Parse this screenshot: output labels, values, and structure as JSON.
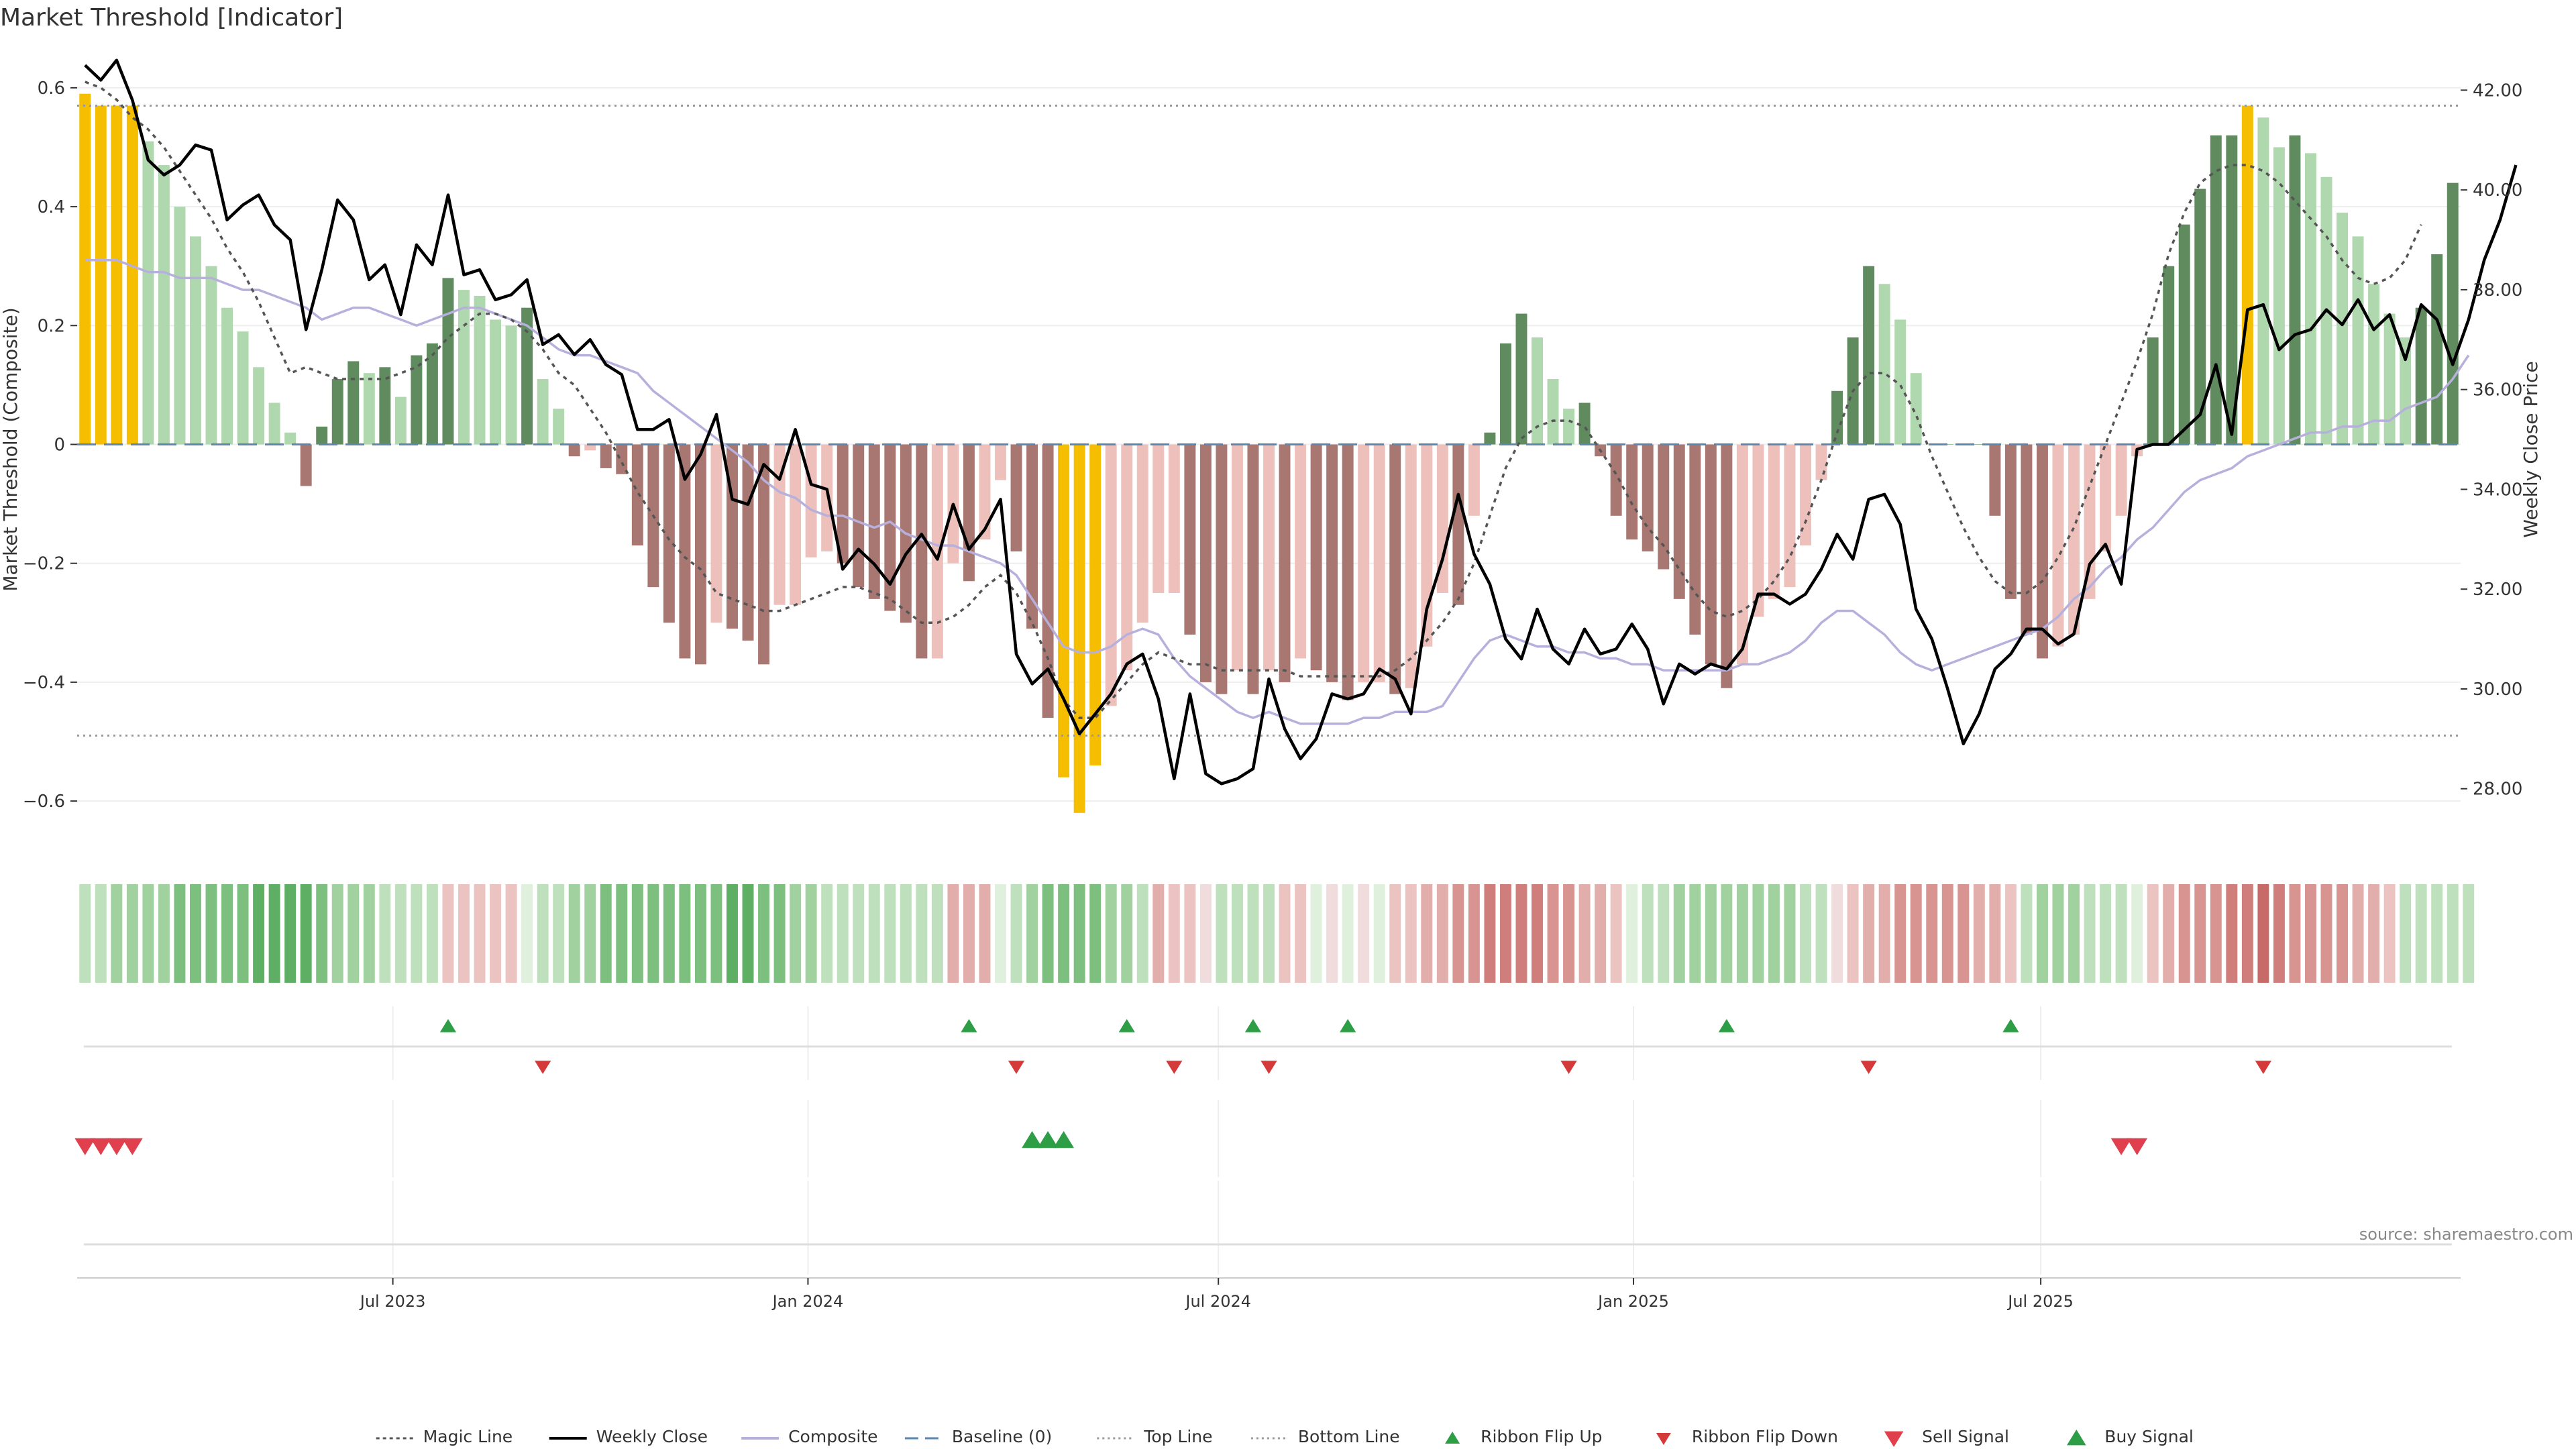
{
  "title": "Market Threshold [Indicator]",
  "source": "source: sharemaestro.com",
  "colors": {
    "strong_up": "#5f8b5f",
    "weak_up": "#b0d8ae",
    "weak_down": "#edc0bb",
    "strong_down": "#a87772",
    "extreme": "#f5be00",
    "price": "#000000",
    "composite": "#b7b0dd",
    "magic": "#555555",
    "baseline": "#5a86b0",
    "threshold": "#999999",
    "ribbon_up": "#2e9e46",
    "ribbon_down": "#d43a3a",
    "signal_sell": "#e0404e",
    "signal_buy": "#2e9e46"
  },
  "chart_data": {
    "type": "bar",
    "yaxis_left": {
      "label": "Market Threshold (Composite)",
      "ylim": [
        -0.68,
        0.68
      ],
      "ticks": [
        0.6,
        0.4,
        0.2,
        0,
        -0.2,
        -0.4,
        -0.6
      ],
      "tick_labels": [
        "0.6",
        "0.4",
        "0.2",
        "0",
        "−0.2",
        "−0.4",
        "−0.6"
      ]
    },
    "yaxis_right": {
      "label": "Weekly Close Price",
      "ylim": [
        26.8,
        43.0
      ],
      "ticks": [
        42,
        40,
        38,
        36,
        34,
        32,
        30,
        28
      ],
      "tick_labels": [
        "42.00",
        "40.00",
        "38.00",
        "36.00",
        "34.00",
        "32.00",
        "30.00",
        "28.00"
      ]
    },
    "xaxis": {
      "start_date": "2023-01-08",
      "weeks": 144,
      "tick_labels": [
        "Jul 2023",
        "Jan 2024",
        "Jul 2024",
        "Jan 2025",
        "Jul 2025"
      ],
      "tick_week_index": [
        20,
        46.3,
        72.3,
        98.6,
        124.4
      ]
    },
    "top_line": 0.57,
    "bottom_line": -0.49,
    "baseline": 0,
    "values": [
      0.59,
      0.57,
      0.57,
      0.57,
      0.51,
      0.47,
      0.4,
      0.35,
      0.3,
      0.23,
      0.19,
      0.13,
      0.07,
      0.02,
      -0.07,
      0.03,
      0.11,
      0.14,
      0.12,
      0.13,
      0.08,
      0.15,
      0.17,
      0.28,
      0.26,
      0.25,
      0.21,
      0.2,
      0.23,
      0.11,
      0.06,
      -0.02,
      -0.01,
      -0.04,
      -0.05,
      -0.17,
      -0.24,
      -0.3,
      -0.36,
      -0.37,
      -0.3,
      -0.31,
      -0.33,
      -0.37,
      -0.27,
      -0.27,
      -0.19,
      -0.18,
      -0.2,
      -0.24,
      -0.26,
      -0.28,
      -0.3,
      -0.36,
      -0.36,
      -0.2,
      -0.23,
      -0.16,
      -0.06,
      -0.18,
      -0.31,
      -0.46,
      -0.56,
      -0.62,
      -0.54,
      -0.44,
      -0.38,
      -0.3,
      -0.25,
      -0.25,
      -0.32,
      -0.4,
      -0.42,
      -0.38,
      -0.42,
      -0.38,
      -0.4,
      -0.36,
      -0.38,
      -0.4,
      -0.43,
      -0.4,
      -0.4,
      -0.42,
      -0.41,
      -0.34,
      -0.25,
      -0.27,
      -0.12,
      0.02,
      0.17,
      0.22,
      0.18,
      0.11,
      0.06,
      0.07,
      -0.02,
      -0.12,
      -0.16,
      -0.18,
      -0.21,
      -0.26,
      -0.32,
      -0.37,
      -0.41,
      -0.37,
      -0.29,
      -0.26,
      -0.24,
      -0.17,
      -0.06,
      0.09,
      0.18,
      0.3,
      0.27,
      0.21,
      0.12,
      0.0,
      0.0,
      0.0,
      0.0,
      -0.12,
      -0.26,
      -0.32,
      -0.36,
      -0.34,
      -0.32,
      -0.26,
      -0.18,
      -0.12,
      -0.02,
      0.18,
      0.3,
      0.37,
      0.43,
      0.52,
      0.52,
      0.57,
      0.55,
      0.5,
      0.52,
      0.49,
      0.45,
      0.39,
      0.35,
      0.27,
      0.22,
      0.18,
      0.23,
      0.32,
      0.44
    ],
    "price": [
      42.5,
      42.2,
      42.6,
      41.8,
      40.6,
      40.3,
      40.5,
      40.9,
      40.8,
      39.4,
      39.7,
      39.9,
      39.3,
      39.0,
      37.2,
      38.4,
      39.8,
      39.4,
      38.2,
      38.5,
      37.5,
      38.9,
      38.5,
      39.9,
      38.3,
      38.4,
      37.8,
      37.9,
      38.2,
      36.9,
      37.1,
      36.7,
      37.0,
      36.5,
      36.3,
      35.2,
      35.2,
      35.4,
      34.2,
      34.7,
      35.5,
      33.8,
      33.7,
      34.5,
      34.2,
      35.2,
      34.1,
      34.0,
      32.4,
      32.8,
      32.5,
      32.1,
      32.7,
      33.1,
      32.6,
      33.7,
      32.8,
      33.2,
      33.8,
      30.7,
      30.1,
      30.4,
      29.8,
      29.1,
      29.5,
      29.9,
      30.5,
      30.7,
      29.8,
      28.2,
      29.9,
      28.3,
      28.1,
      28.2,
      28.4,
      30.2,
      29.2,
      28.6,
      29.0,
      29.9,
      29.8,
      29.9,
      30.4,
      30.2,
      29.5,
      31.6,
      32.6,
      33.9,
      32.7,
      32.1,
      31.0,
      30.6,
      31.6,
      30.8,
      30.5,
      31.2,
      30.7,
      30.8,
      31.3,
      30.8,
      29.7,
      30.5,
      30.3,
      30.5,
      30.4,
      30.8,
      31.9,
      31.9,
      31.7,
      31.9,
      32.4,
      33.1,
      32.6,
      33.8,
      33.9,
      33.3,
      31.6,
      31.0,
      30.0,
      28.9,
      29.5,
      30.4,
      30.7,
      31.2,
      31.2,
      30.9,
      31.1,
      32.5,
      32.9,
      32.1,
      34.8,
      34.9,
      34.9,
      35.2,
      35.5,
      36.5,
      35.1,
      37.6,
      37.7,
      36.8,
      37.1,
      37.2,
      37.6,
      37.3,
      37.8,
      37.2,
      37.5,
      36.6,
      37.7,
      37.4,
      36.5,
      37.4,
      38.6,
      39.4,
      40.5
    ],
    "composite": [
      0.31,
      0.31,
      0.31,
      0.3,
      0.29,
      0.29,
      0.28,
      0.28,
      0.28,
      0.27,
      0.26,
      0.26,
      0.25,
      0.24,
      0.23,
      0.21,
      0.22,
      0.23,
      0.23,
      0.22,
      0.21,
      0.2,
      0.21,
      0.22,
      0.23,
      0.23,
      0.22,
      0.21,
      0.2,
      0.18,
      0.16,
      0.15,
      0.15,
      0.14,
      0.13,
      0.12,
      0.09,
      0.07,
      0.05,
      0.03,
      0.01,
      -0.01,
      -0.03,
      -0.06,
      -0.08,
      -0.09,
      -0.11,
      -0.12,
      -0.12,
      -0.13,
      -0.14,
      -0.13,
      -0.15,
      -0.16,
      -0.17,
      -0.17,
      -0.18,
      -0.19,
      -0.2,
      -0.22,
      -0.26,
      -0.3,
      -0.34,
      -0.35,
      -0.35,
      -0.34,
      -0.32,
      -0.31,
      -0.32,
      -0.36,
      -0.39,
      -0.41,
      -0.43,
      -0.45,
      -0.46,
      -0.45,
      -0.46,
      -0.47,
      -0.47,
      -0.47,
      -0.47,
      -0.46,
      -0.46,
      -0.45,
      -0.45,
      -0.45,
      -0.44,
      -0.4,
      -0.36,
      -0.33,
      -0.32,
      -0.33,
      -0.34,
      -0.34,
      -0.35,
      -0.35,
      -0.36,
      -0.36,
      -0.37,
      -0.37,
      -0.38,
      -0.38,
      -0.38,
      -0.38,
      -0.38,
      -0.37,
      -0.37,
      -0.36,
      -0.35,
      -0.33,
      -0.3,
      -0.28,
      -0.28,
      -0.3,
      -0.32,
      -0.35,
      -0.37,
      -0.38,
      -0.37,
      -0.36,
      -0.35,
      -0.34,
      -0.33,
      -0.32,
      -0.31,
      -0.29,
      -0.26,
      -0.24,
      -0.21,
      -0.19,
      -0.16,
      -0.14,
      -0.11,
      -0.08,
      -0.06,
      -0.05,
      -0.04,
      -0.02,
      -0.01,
      0.0,
      0.01,
      0.02,
      0.02,
      0.03,
      0.03,
      0.04,
      0.04,
      0.06,
      0.07,
      0.08,
      0.11,
      0.15
    ],
    "magic_line": [
      0.61,
      0.6,
      0.58,
      0.55,
      0.53,
      0.5,
      0.46,
      0.42,
      0.38,
      0.33,
      0.29,
      0.24,
      0.18,
      0.12,
      0.13,
      0.12,
      0.11,
      0.11,
      0.11,
      0.11,
      0.12,
      0.13,
      0.15,
      0.18,
      0.2,
      0.22,
      0.22,
      0.21,
      0.19,
      0.16,
      0.12,
      0.1,
      0.06,
      0.02,
      -0.03,
      -0.08,
      -0.12,
      -0.16,
      -0.19,
      -0.21,
      -0.25,
      -0.26,
      -0.27,
      -0.28,
      -0.28,
      -0.27,
      -0.26,
      -0.25,
      -0.24,
      -0.24,
      -0.25,
      -0.26,
      -0.28,
      -0.3,
      -0.3,
      -0.29,
      -0.27,
      -0.24,
      -0.22,
      -0.25,
      -0.3,
      -0.36,
      -0.43,
      -0.46,
      -0.46,
      -0.43,
      -0.4,
      -0.37,
      -0.35,
      -0.36,
      -0.37,
      -0.37,
      -0.38,
      -0.38,
      -0.38,
      -0.38,
      -0.38,
      -0.39,
      -0.39,
      -0.39,
      -0.39,
      -0.39,
      -0.39,
      -0.38,
      -0.36,
      -0.33,
      -0.3,
      -0.26,
      -0.2,
      -0.12,
      -0.04,
      0.01,
      0.03,
      0.04,
      0.04,
      0.03,
      -0.01,
      -0.05,
      -0.1,
      -0.14,
      -0.17,
      -0.21,
      -0.25,
      -0.28,
      -0.29,
      -0.28,
      -0.26,
      -0.23,
      -0.19,
      -0.13,
      -0.06,
      0.02,
      0.09,
      0.12,
      0.12,
      0.1,
      0.05,
      -0.02,
      -0.08,
      -0.14,
      -0.19,
      -0.23,
      -0.25,
      -0.25,
      -0.23,
      -0.19,
      -0.14,
      -0.07,
      0.0,
      0.07,
      0.14,
      0.22,
      0.32,
      0.39,
      0.44,
      0.46,
      0.47,
      0.47,
      0.46,
      0.44,
      0.41,
      0.38,
      0.35,
      0.31,
      0.28,
      0.27,
      0.28,
      0.31,
      0.37
    ],
    "ribbon": [
      1,
      1,
      2,
      2,
      2,
      2,
      3,
      3,
      3,
      3,
      3,
      4,
      4,
      4,
      4,
      3,
      2,
      2,
      2,
      1,
      1,
      1,
      1,
      -1,
      -1,
      -1,
      -1,
      -1,
      0,
      1,
      1,
      2,
      2,
      3,
      3,
      3,
      3,
      3,
      3,
      3,
      3,
      4,
      4,
      3,
      3,
      2,
      2,
      1,
      1,
      1,
      1,
      1,
      1,
      1,
      1,
      -2,
      -2,
      -2,
      0,
      1,
      2,
      3,
      3,
      3,
      3,
      2,
      2,
      1,
      -2,
      -1,
      -1,
      0,
      1,
      1,
      1,
      1,
      -1,
      -1,
      0,
      0,
      0,
      0,
      0,
      -1,
      -1,
      -2,
      -2,
      -3,
      -3,
      -4,
      -4,
      -4,
      -4,
      -3,
      -3,
      -2,
      -2,
      -1,
      0,
      1,
      1,
      2,
      2,
      2,
      2,
      2,
      2,
      2,
      2,
      1,
      1,
      0,
      -1,
      -2,
      -2,
      -3,
      -3,
      -3,
      -3,
      -3,
      -2,
      -2,
      -1,
      1,
      2,
      2,
      2,
      1,
      1,
      1,
      0,
      -1,
      -2,
      -3,
      -3,
      -3,
      -4,
      -4,
      -5,
      -4,
      -3,
      -3,
      -3,
      -3,
      -2,
      -2,
      -1,
      1,
      1,
      1,
      1,
      1
    ],
    "ribbon_flip_up": [
      23,
      56,
      66,
      74,
      80,
      104,
      122
    ],
    "ribbon_flip_down": [
      29,
      59,
      69,
      75,
      94,
      113,
      138
    ],
    "sell_signal": [
      0,
      1,
      2,
      3,
      129,
      130
    ],
    "buy_signal": [
      60,
      61,
      62
    ]
  },
  "legend": [
    {
      "key": "magic",
      "label": "Magic Line"
    },
    {
      "key": "price",
      "label": "Weekly Close"
    },
    {
      "key": "composite",
      "label": "Composite"
    },
    {
      "key": "baseline",
      "label": "Baseline (0)"
    },
    {
      "key": "top",
      "label": "Top Line"
    },
    {
      "key": "bottom",
      "label": "Bottom Line"
    },
    {
      "key": "flip_up",
      "label": "Ribbon Flip Up"
    },
    {
      "key": "flip_down",
      "label": "Ribbon Flip Down"
    },
    {
      "key": "sell",
      "label": "Sell Signal"
    },
    {
      "key": "buy",
      "label": "Buy Signal"
    }
  ]
}
